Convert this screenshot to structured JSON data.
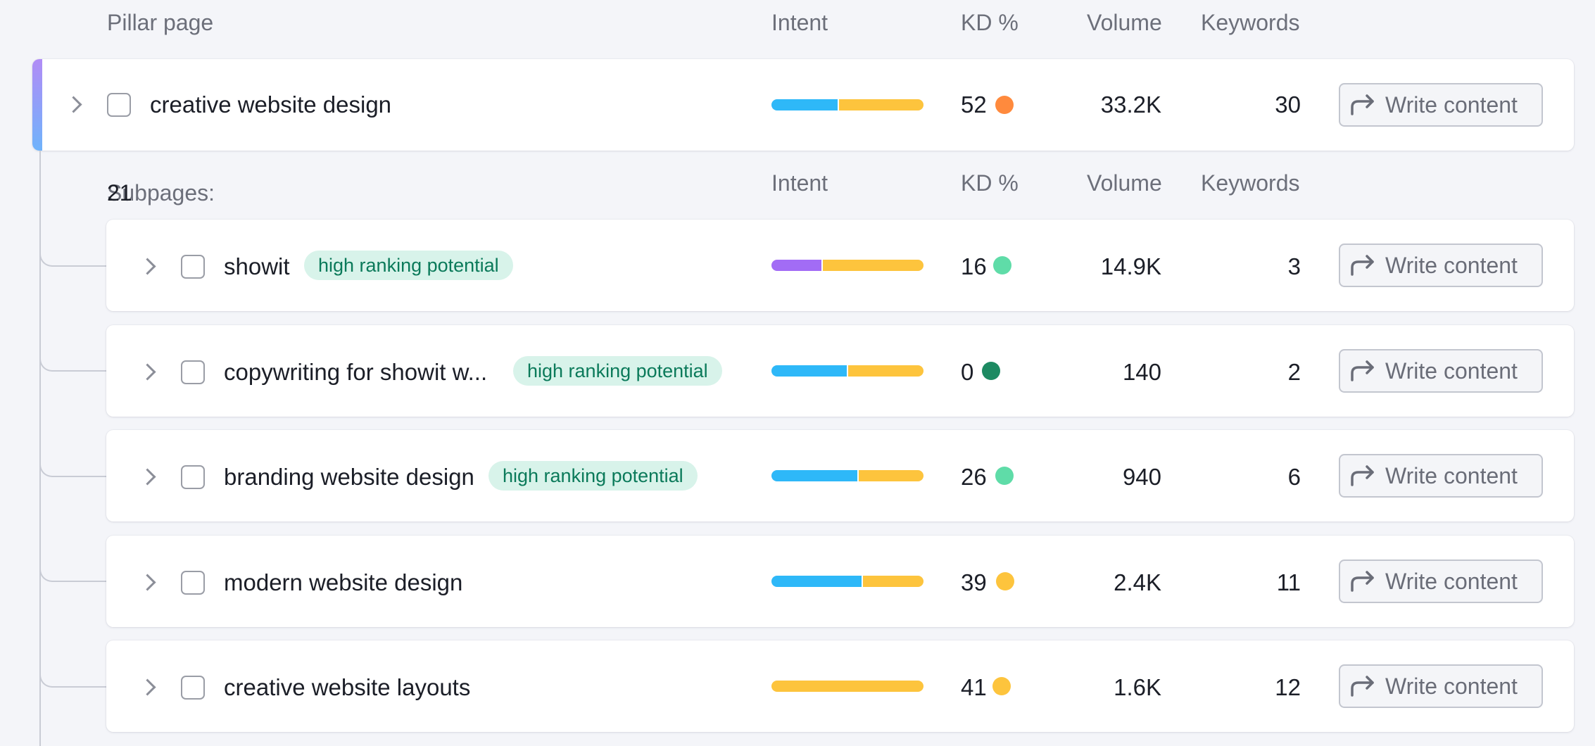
{
  "header": {
    "pillar_label": "Pillar page",
    "intent_label": "Intent",
    "kd_label": "KD %",
    "volume_label": "Volume",
    "keywords_label": "Keywords"
  },
  "pillar": {
    "keyword": "creative website design",
    "intent": [
      {
        "color": "#2eb8f8",
        "share": 0.44
      },
      {
        "color": "#fdc43d",
        "share": 0.56
      }
    ],
    "kd": "52",
    "kd_color": "#ff8a3d",
    "volume": "33.2K",
    "keywords": "30",
    "action_label": "Write content"
  },
  "sub_header": {
    "label": "Subpages:",
    "count": "21",
    "intent_label": "Intent",
    "kd_label": "KD %",
    "volume_label": "Volume",
    "keywords_label": "Keywords"
  },
  "subpages": [
    {
      "keyword": "showit",
      "badge": "high ranking potential",
      "intent": [
        {
          "color": "#a26cf5",
          "share": 0.33
        },
        {
          "color": "#fdc43d",
          "share": 0.67
        }
      ],
      "kd": "16",
      "kd_color": "#5fdca8",
      "volume": "14.9K",
      "keywords": "3",
      "action_label": "Write content"
    },
    {
      "keyword": "copywriting for showit w...",
      "badge": "high ranking potential",
      "intent": [
        {
          "color": "#2eb8f8",
          "share": 0.5
        },
        {
          "color": "#fdc43d",
          "share": 0.5
        }
      ],
      "kd": "0",
      "kd_color": "#1d8a62",
      "volume": "140",
      "keywords": "2",
      "action_label": "Write content"
    },
    {
      "keyword": "branding website design",
      "badge": "high ranking potential",
      "intent": [
        {
          "color": "#2eb8f8",
          "share": 0.57
        },
        {
          "color": "#fdc43d",
          "share": 0.43
        }
      ],
      "kd": "26",
      "kd_color": "#5fdca8",
      "volume": "940",
      "keywords": "6",
      "action_label": "Write content"
    },
    {
      "keyword": "modern website design",
      "badge": "",
      "intent": [
        {
          "color": "#2eb8f8",
          "share": 0.6
        },
        {
          "color": "#fdc43d",
          "share": 0.4
        }
      ],
      "kd": "39",
      "kd_color": "#fdc43d",
      "volume": "2.4K",
      "keywords": "11",
      "action_label": "Write content"
    },
    {
      "keyword": "creative website layouts",
      "badge": "",
      "intent": [
        {
          "color": "#fdc43d",
          "share": 1.0
        }
      ],
      "kd": "41",
      "kd_color": "#fdc43d",
      "volume": "1.6K",
      "keywords": "12",
      "action_label": "Write content"
    }
  ]
}
